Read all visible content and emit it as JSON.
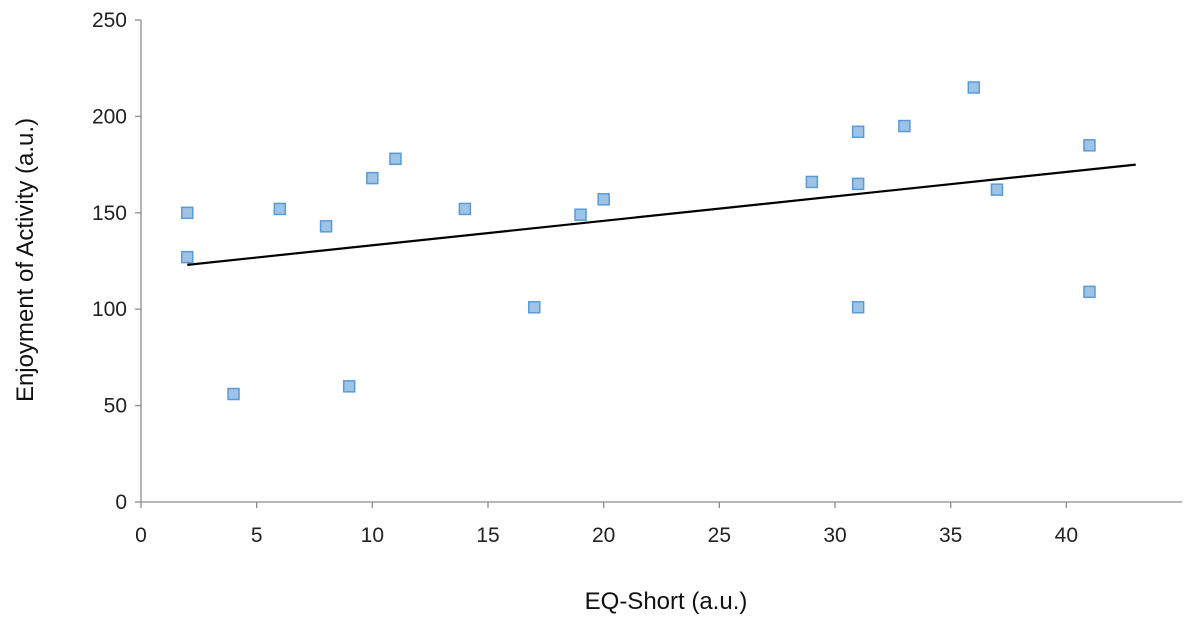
{
  "chart_data": {
    "type": "scatter",
    "title": "",
    "xlabel": "EQ-Short (a.u.)",
    "ylabel": "Enjoyment of Activity (a.u.)",
    "xlim": [
      0,
      45
    ],
    "ylim": [
      0,
      250
    ],
    "xticks": [
      0,
      5,
      10,
      15,
      20,
      25,
      30,
      35,
      40
    ],
    "yticks": [
      0,
      50,
      100,
      150,
      200,
      250
    ],
    "grid": false,
    "legend": "none",
    "marker": "square",
    "marker_fill": "#9dc3e6",
    "marker_stroke": "#5b9bd5",
    "trendline_color": "#000000",
    "points": [
      {
        "x": 2,
        "y": 150
      },
      {
        "x": 2,
        "y": 127
      },
      {
        "x": 4,
        "y": 56
      },
      {
        "x": 6,
        "y": 152
      },
      {
        "x": 8,
        "y": 143
      },
      {
        "x": 9,
        "y": 60
      },
      {
        "x": 10,
        "y": 168
      },
      {
        "x": 11,
        "y": 178
      },
      {
        "x": 14,
        "y": 152
      },
      {
        "x": 17,
        "y": 101
      },
      {
        "x": 19,
        "y": 149
      },
      {
        "x": 20,
        "y": 157
      },
      {
        "x": 29,
        "y": 166
      },
      {
        "x": 31,
        "y": 192
      },
      {
        "x": 31,
        "y": 165
      },
      {
        "x": 31,
        "y": 101
      },
      {
        "x": 33,
        "y": 195
      },
      {
        "x": 36,
        "y": 215
      },
      {
        "x": 37,
        "y": 162
      },
      {
        "x": 41,
        "y": 185
      },
      {
        "x": 41,
        "y": 109
      }
    ],
    "trendline": {
      "x": [
        2,
        43
      ],
      "y": [
        123,
        175
      ]
    }
  }
}
